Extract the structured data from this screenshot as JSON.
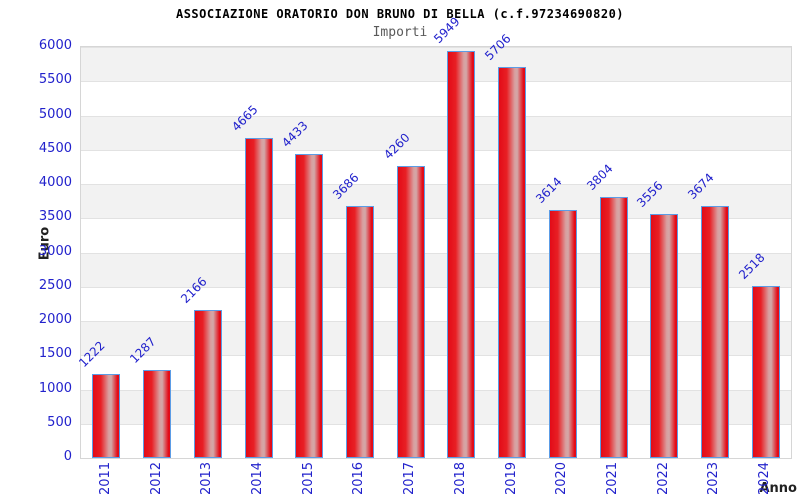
{
  "chart_data": {
    "type": "bar",
    "title": "ASSOCIAZIONE ORATORIO DON BRUNO DI BELLA (c.f.97234690820)",
    "subtitle": "Importi",
    "xlabel": "Anno",
    "ylabel": "Euro",
    "categories": [
      "2011",
      "2012",
      "2013",
      "2014",
      "2015",
      "2016",
      "2017",
      "2018",
      "2019",
      "2020",
      "2021",
      "2022",
      "2023",
      "2024"
    ],
    "values": [
      1222,
      1287,
      2166,
      4665,
      4433,
      3686,
      4260,
      5949,
      5706,
      3614,
      3804,
      3556,
      3674,
      2518
    ],
    "ylim": [
      0,
      6000
    ],
    "ytick_step": 500,
    "grid": true,
    "legend_position": "none",
    "colors": {
      "bar_red": "#e30b17",
      "bar_center_light": "#d99e9e",
      "bar_border_blue": "#5b9ce6",
      "label_blue": "#2222cc",
      "band_gray": "#f2f2f2",
      "gridline": "#e2e2e2",
      "subtitle_gray": "#5a5a5a",
      "axis_title_dark": "#222222"
    }
  }
}
